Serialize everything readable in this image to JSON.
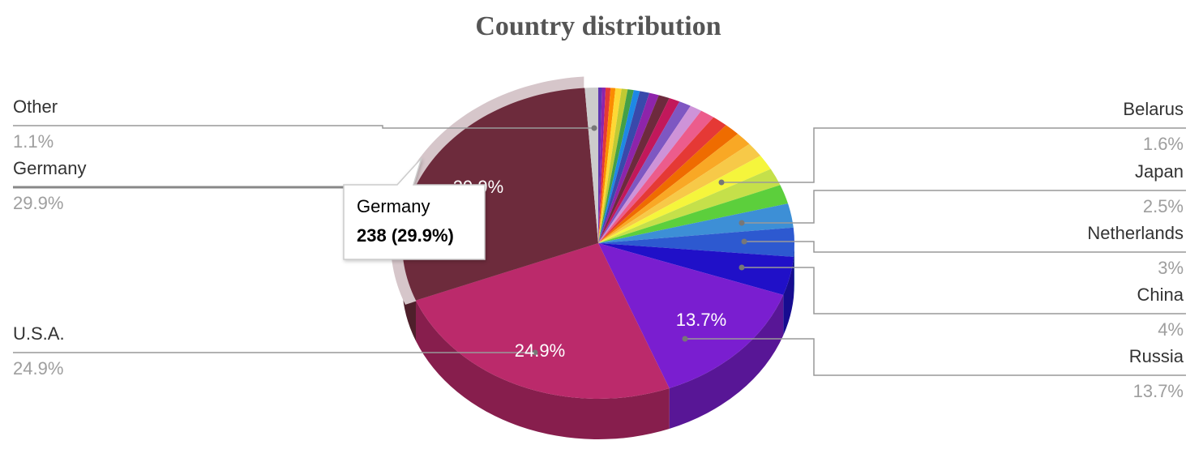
{
  "chart_data": {
    "type": "pie3d",
    "title": "Country distribution",
    "categories": [
      null,
      null,
      null,
      null,
      null,
      null,
      null,
      null,
      null,
      null,
      null,
      null,
      null,
      null,
      null,
      null,
      null,
      null,
      null,
      "Belarus",
      null,
      null,
      "Japan",
      "Netherlands",
      "China",
      "Russia",
      "U.S.A.",
      "Germany",
      "Other"
    ],
    "values": [
      0.3,
      0.3,
      0.4,
      0.4,
      0.5,
      0.5,
      0.5,
      0.5,
      0.8,
      0.8,
      0.9,
      0.9,
      1.0,
      1.0,
      1.2,
      1.3,
      1.3,
      1.4,
      1.5,
      1.6,
      1.8,
      2.0,
      2.5,
      3,
      4,
      13.7,
      24.9,
      29.9,
      1.1
    ],
    "value_labels": [
      null,
      null,
      null,
      null,
      null,
      null,
      null,
      null,
      null,
      null,
      null,
      null,
      null,
      null,
      null,
      null,
      null,
      null,
      null,
      "1.6%",
      null,
      null,
      "2.5%",
      "3%",
      "4%",
      "13.7%",
      "24.9%",
      "29.9%",
      "1.1%"
    ],
    "colors": [
      "#5e35b1",
      "#8e24aa",
      "#e53935",
      "#fb8c00",
      "#fdd835",
      "#c0ca33",
      "#43a047",
      "#1e88e5",
      "#3949ab",
      "#8e24aa",
      "#6d2a3d",
      "#c2185b",
      "#7e57c2",
      "#ce93d8",
      "#ec5c8c",
      "#e53935",
      "#ef6c00",
      "#f9a825",
      "#f7c948",
      "#f5f53c",
      "#c5e04a",
      "#5ccf3c",
      "#3d8fd6",
      "#2d59d0",
      "#2010c8",
      "#7a1ed0",
      "#bb2a6b",
      "#6d2b3c",
      "#cccccc"
    ],
    "highlight": 27,
    "tooltip": {
      "label": "238 (29.9%)"
    }
  }
}
